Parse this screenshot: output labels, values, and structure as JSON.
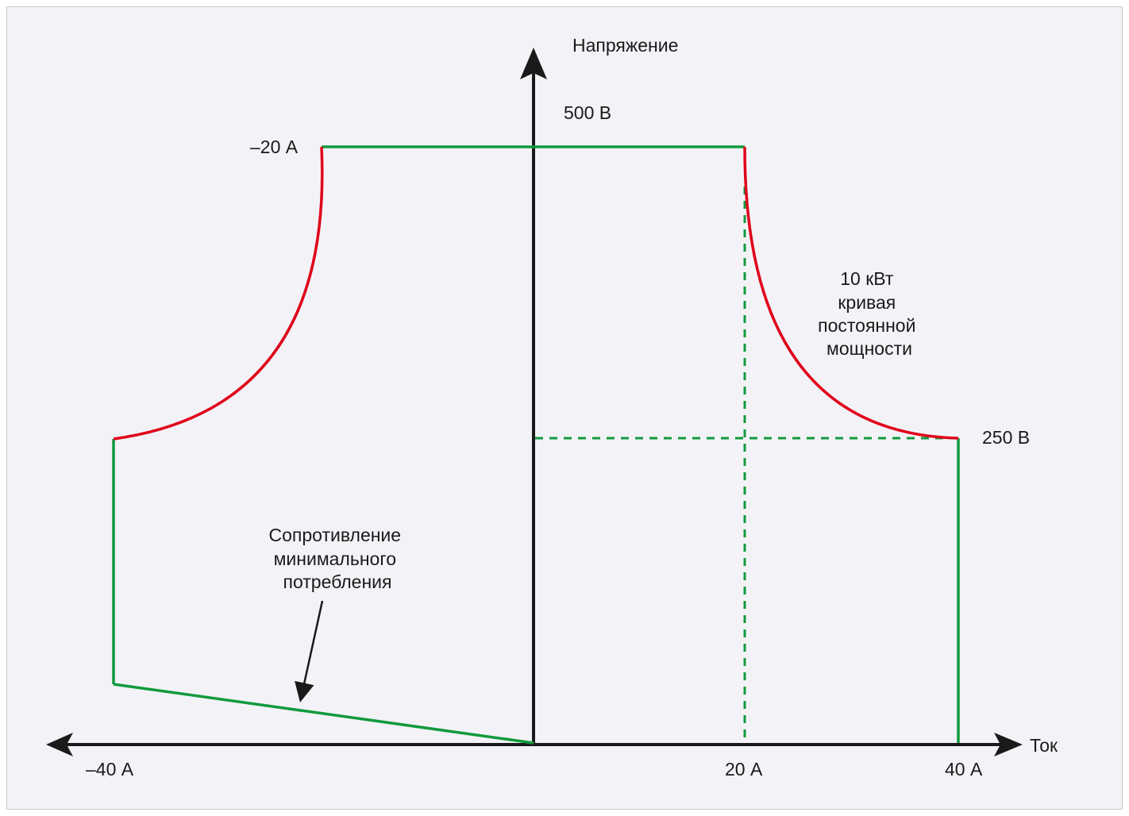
{
  "diagram": {
    "axis_labels": {
      "vertical": "Напряжение",
      "horizontal": "Ток"
    },
    "voltage_labels": {
      "max": "500 В",
      "knee": "250 В"
    },
    "current_labels": {
      "neg_top": "–20 А",
      "neg_axis": "–40 А",
      "pos_mid": "20 А",
      "pos_max": "40 А"
    },
    "power_curve_label": [
      "10 кВт",
      "кривая",
      "постоянной",
      "мощности"
    ],
    "resistance_label": [
      "Сопротивление",
      "минимального",
      "потребления"
    ],
    "colors": {
      "background": "#f3f3f7",
      "axis": "#1a1a1a",
      "boundary": "#119a3c",
      "power_curve": "#e0001a"
    }
  }
}
